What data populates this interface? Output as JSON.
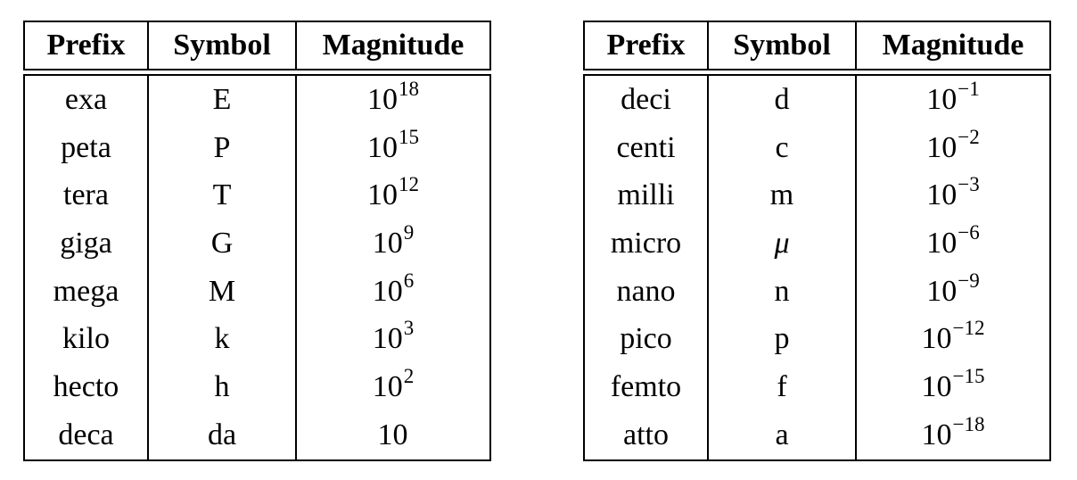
{
  "left_table": {
    "headers": [
      "Prefix",
      "Symbol",
      "Magnitude"
    ],
    "rows": [
      {
        "prefix": "exa",
        "symbol": "E",
        "base": "10",
        "exp": "18"
      },
      {
        "prefix": "peta",
        "symbol": "P",
        "base": "10",
        "exp": "15"
      },
      {
        "prefix": "tera",
        "symbol": "T",
        "base": "10",
        "exp": "12"
      },
      {
        "prefix": "giga",
        "symbol": "G",
        "base": "10",
        "exp": "9"
      },
      {
        "prefix": "mega",
        "symbol": "M",
        "base": "10",
        "exp": "6"
      },
      {
        "prefix": "kilo",
        "symbol": "k",
        "base": "10",
        "exp": "3"
      },
      {
        "prefix": "hecto",
        "symbol": "h",
        "base": "10",
        "exp": "2"
      },
      {
        "prefix": "deca",
        "symbol": "da",
        "base": "10",
        "exp": ""
      }
    ]
  },
  "right_table": {
    "headers": [
      "Prefix",
      "Symbol",
      "Magnitude"
    ],
    "rows": [
      {
        "prefix": "deci",
        "symbol": "d",
        "base": "10",
        "exp": "−1"
      },
      {
        "prefix": "centi",
        "symbol": "c",
        "base": "10",
        "exp": "−2"
      },
      {
        "prefix": "milli",
        "symbol": "m",
        "base": "10",
        "exp": "−3"
      },
      {
        "prefix": "micro",
        "symbol": "μ",
        "base": "10",
        "exp": "−6"
      },
      {
        "prefix": "nano",
        "symbol": "n",
        "base": "10",
        "exp": "−9"
      },
      {
        "prefix": "pico",
        "symbol": "p",
        "base": "10",
        "exp": "−12"
      },
      {
        "prefix": "femto",
        "symbol": "f",
        "base": "10",
        "exp": "−15"
      },
      {
        "prefix": "atto",
        "symbol": "a",
        "base": "10",
        "exp": "−18"
      }
    ]
  }
}
